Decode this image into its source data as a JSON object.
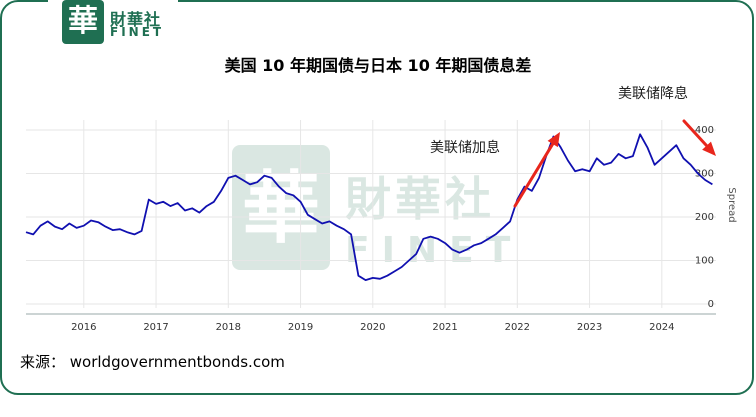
{
  "logo": {
    "mark": "華",
    "cn": "財華社",
    "en": "FINET"
  },
  "watermark": {
    "mark": "華",
    "cn": "財華社",
    "en": "FINET"
  },
  "source_text": "来源： worldgovernmentbonds.com",
  "annotations": {
    "hike": "美联储加息",
    "cut": "美联储降息"
  },
  "colors": {
    "line": "#1010b0",
    "arrow": "#e8261c",
    "brand": "#1f6f52"
  },
  "chart_data": {
    "type": "line",
    "title": "美国 10 年期国债与日本 10 年期国债息差",
    "ylabel": "Spread",
    "xlabel": "",
    "ylim": [
      0,
      400
    ],
    "xlim": [
      2015.2,
      2024.75
    ],
    "x_ticks": [
      2016,
      2017,
      2018,
      2019,
      2020,
      2021,
      2022,
      2023,
      2024
    ],
    "y_ticks": [
      0,
      100,
      200,
      300,
      400
    ],
    "grid": true,
    "legend": "none",
    "series": [
      {
        "x": [
          2015.2,
          2015.3,
          2015.4,
          2015.5,
          2015.6,
          2015.7,
          2015.8,
          2015.9,
          2016.0,
          2016.1,
          2016.2,
          2016.3,
          2016.4,
          2016.5,
          2016.6,
          2016.7,
          2016.8,
          2016.9,
          2017.0,
          2017.1,
          2017.2,
          2017.3,
          2017.4,
          2017.5,
          2017.6,
          2017.7,
          2017.8,
          2017.9,
          2018.0,
          2018.1,
          2018.2,
          2018.3,
          2018.4,
          2018.5,
          2018.6,
          2018.7,
          2018.8,
          2018.9,
          2019.0,
          2019.1,
          2019.2,
          2019.3,
          2019.4,
          2019.5,
          2019.6,
          2019.7,
          2019.8,
          2019.9,
          2020.0,
          2020.1,
          2020.2,
          2020.3,
          2020.4,
          2020.5,
          2020.6,
          2020.7,
          2020.8,
          2020.9,
          2021.0,
          2021.1,
          2021.2,
          2021.3,
          2021.4,
          2021.5,
          2021.6,
          2021.7,
          2021.8,
          2021.9,
          2022.0,
          2022.1,
          2022.2,
          2022.3,
          2022.4,
          2022.5,
          2022.6,
          2022.7,
          2022.8,
          2022.9,
          2023.0,
          2023.1,
          2023.2,
          2023.3,
          2023.4,
          2023.5,
          2023.6,
          2023.7,
          2023.8,
          2023.9,
          2024.0,
          2024.1,
          2024.2,
          2024.3,
          2024.4,
          2024.5,
          2024.6,
          2024.7
        ],
        "values": [
          165,
          160,
          180,
          190,
          178,
          172,
          185,
          175,
          180,
          192,
          188,
          178,
          170,
          172,
          165,
          160,
          168,
          240,
          230,
          235,
          225,
          232,
          215,
          220,
          210,
          225,
          235,
          260,
          290,
          295,
          285,
          275,
          280,
          295,
          290,
          270,
          255,
          250,
          235,
          205,
          195,
          185,
          190,
          180,
          172,
          160,
          65,
          55,
          60,
          58,
          65,
          75,
          85,
          100,
          115,
          150,
          155,
          150,
          140,
          125,
          118,
          125,
          135,
          140,
          150,
          160,
          175,
          190,
          240,
          270,
          260,
          290,
          340,
          385,
          360,
          330,
          305,
          310,
          305,
          335,
          320,
          325,
          345,
          335,
          340,
          390,
          360,
          320,
          335,
          350,
          365,
          335,
          320,
          300,
          285,
          275
        ]
      }
    ]
  }
}
